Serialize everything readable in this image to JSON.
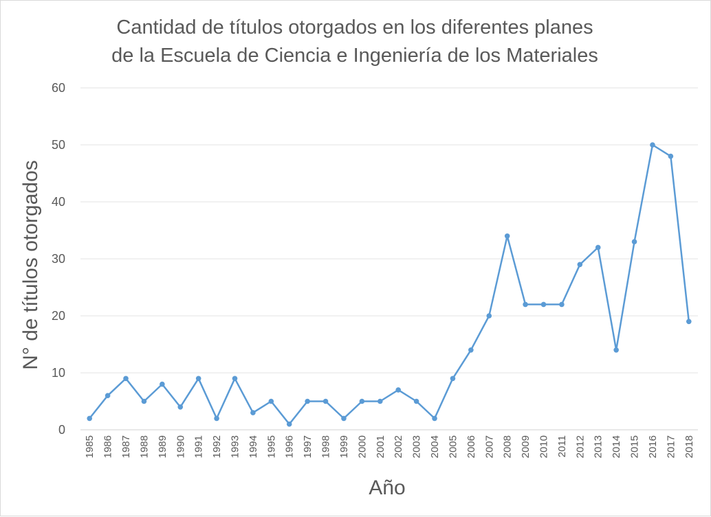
{
  "chart_data": {
    "type": "line",
    "title_line1": "Cantidad de títulos otorgados en los diferentes planes",
    "title_line2": "de la Escuela de Ciencia e Ingeniería de los Materiales",
    "xlabel": "Año",
    "ylabel": "N° de títulos otorgados",
    "ylim": [
      0,
      60
    ],
    "yticks": [
      0,
      10,
      20,
      30,
      40,
      50,
      60
    ],
    "grid": true,
    "legend": "none",
    "line_color": "#5b9bd5",
    "categories": [
      "1985",
      "1986",
      "1987",
      "1988",
      "1989",
      "1990",
      "1991",
      "1992",
      "1993",
      "1994",
      "1995",
      "1996",
      "1997",
      "1998",
      "1999",
      "2000",
      "2001",
      "2002",
      "2003",
      "2004",
      "2005",
      "2006",
      "2007",
      "2008",
      "2009",
      "2010",
      "2011",
      "2012",
      "2013",
      "2014",
      "2015",
      "2016",
      "2017",
      "2018"
    ],
    "values": [
      2,
      6,
      9,
      5,
      8,
      4,
      9,
      2,
      9,
      3,
      5,
      1,
      5,
      5,
      2,
      5,
      5,
      7,
      5,
      2,
      9,
      14,
      20,
      34,
      22,
      22,
      22,
      29,
      32,
      14,
      33,
      50,
      48,
      19
    ]
  }
}
